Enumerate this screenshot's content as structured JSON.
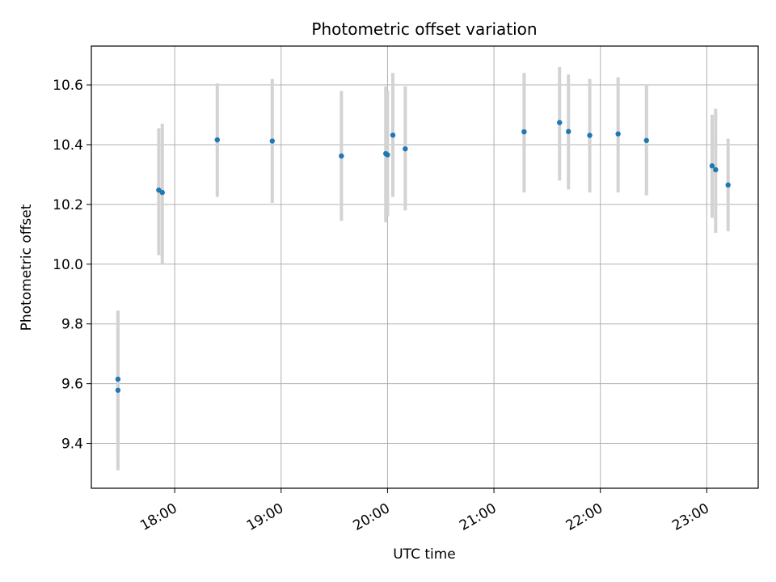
{
  "chart_data": {
    "type": "scatter",
    "title": "Photometric offset variation",
    "xlabel": "UTC time",
    "ylabel": "Photometric offset",
    "x_tick_labels": [
      "18:00",
      "19:00",
      "20:00",
      "21:00",
      "22:00",
      "23:00"
    ],
    "x_tick_values": [
      "18:00",
      "19:00",
      "20:00",
      "21:00",
      "22:00",
      "23:00"
    ],
    "y_tick_labels": [
      "9.4",
      "9.6",
      "9.8",
      "10.0",
      "10.2",
      "10.4",
      "10.6"
    ],
    "y_tick_values": [
      9.4,
      9.6,
      9.8,
      10.0,
      10.2,
      10.4,
      10.6
    ],
    "xlim": [
      "17:13",
      "23:29"
    ],
    "ylim": [
      9.25,
      10.73
    ],
    "grid": true,
    "point_color": "#1f77b4",
    "errorbar_color": "#d3d3d3",
    "points": [
      {
        "x": "17:28",
        "y": 9.615,
        "ymin": 9.38,
        "ymax": 9.845
      },
      {
        "x": "17:28",
        "y": 9.578,
        "ymin": 9.31,
        "ymax": 9.84
      },
      {
        "x": "17:51",
        "y": 10.248,
        "ymin": 10.03,
        "ymax": 10.455
      },
      {
        "x": "17:53",
        "y": 10.24,
        "ymin": 10.0,
        "ymax": 10.47
      },
      {
        "x": "18:24",
        "y": 10.416,
        "ymin": 10.225,
        "ymax": 10.605
      },
      {
        "x": "18:55",
        "y": 10.412,
        "ymin": 10.205,
        "ymax": 10.62
      },
      {
        "x": "19:34",
        "y": 10.362,
        "ymin": 10.145,
        "ymax": 10.58
      },
      {
        "x": "19:59",
        "y": 10.37,
        "ymin": 10.14,
        "ymax": 10.595
      },
      {
        "x": "20:00",
        "y": 10.366,
        "ymin": 10.16,
        "ymax": 10.58
      },
      {
        "x": "20:03",
        "y": 10.432,
        "ymin": 10.225,
        "ymax": 10.64
      },
      {
        "x": "20:10",
        "y": 10.386,
        "ymin": 10.18,
        "ymax": 10.595
      },
      {
        "x": "21:17",
        "y": 10.443,
        "ymin": 10.24,
        "ymax": 10.64
      },
      {
        "x": "21:37",
        "y": 10.474,
        "ymin": 10.28,
        "ymax": 10.66
      },
      {
        "x": "21:42",
        "y": 10.444,
        "ymin": 10.25,
        "ymax": 10.635
      },
      {
        "x": "21:54",
        "y": 10.431,
        "ymin": 10.24,
        "ymax": 10.62
      },
      {
        "x": "22:10",
        "y": 10.436,
        "ymin": 10.24,
        "ymax": 10.625
      },
      {
        "x": "22:26",
        "y": 10.414,
        "ymin": 10.23,
        "ymax": 10.6
      },
      {
        "x": "23:03",
        "y": 10.329,
        "ymin": 10.155,
        "ymax": 10.5
      },
      {
        "x": "23:05",
        "y": 10.316,
        "ymin": 10.105,
        "ymax": 10.52
      },
      {
        "x": "23:12",
        "y": 10.265,
        "ymin": 10.11,
        "ymax": 10.42
      }
    ]
  }
}
